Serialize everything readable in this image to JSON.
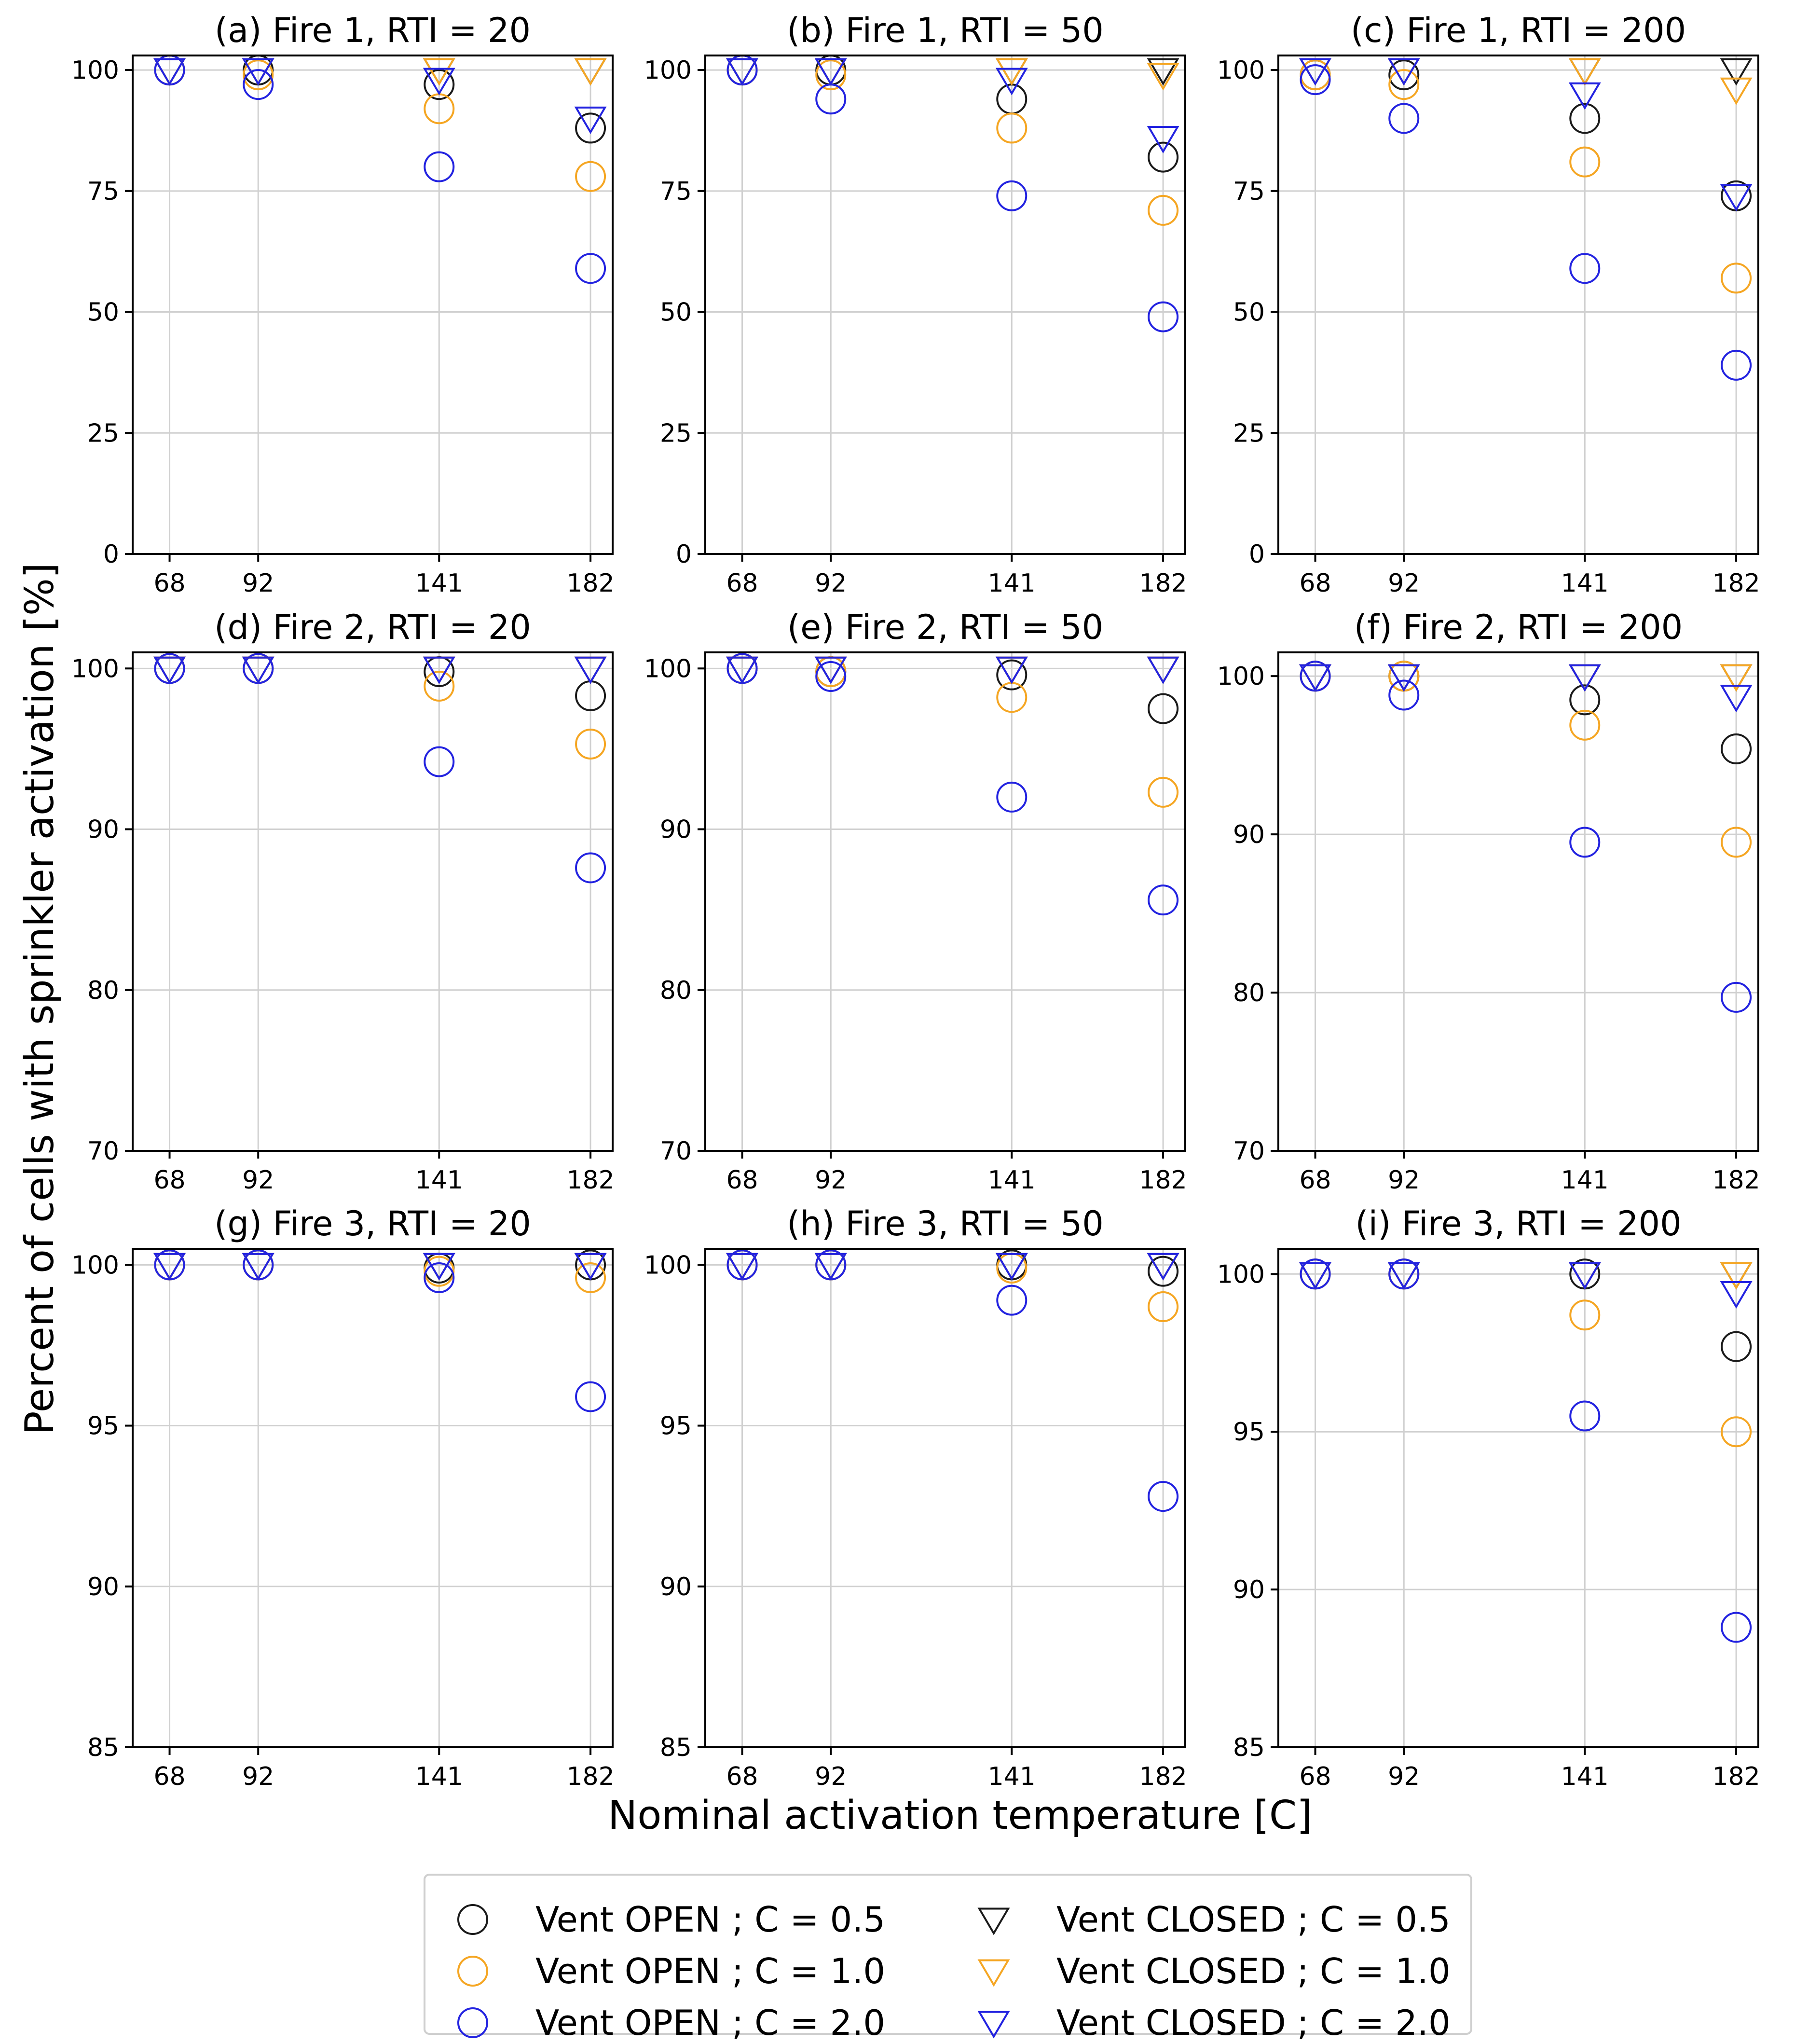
{
  "chart_data": {
    "type": "scatter",
    "xlabel": "Nominal activation temperature [C]",
    "ylabel": "Percent of cells with sprinkler activation [%]",
    "x_ticks": [
      68,
      92,
      141,
      182
    ],
    "grid": true,
    "legend_location": "bottom-center",
    "series_meta": [
      {
        "key": "open_05",
        "name": "Vent OPEN ; C = 0.5",
        "marker": "circle",
        "color": "#1a1a1a"
      },
      {
        "key": "open_10",
        "name": "Vent OPEN ; C = 1.0",
        "marker": "circle",
        "color": "#f5a623"
      },
      {
        "key": "open_20",
        "name": "Vent OPEN ; C = 2.0",
        "marker": "circle",
        "color": "#2323e0"
      },
      {
        "key": "closed_05",
        "name": "Vent CLOSED ; C = 0.5",
        "marker": "triangle-down",
        "color": "#1a1a1a"
      },
      {
        "key": "closed_10",
        "name": "Vent CLOSED ; C = 1.0",
        "marker": "triangle-down",
        "color": "#f5a623"
      },
      {
        "key": "closed_20",
        "name": "Vent CLOSED ; C = 2.0",
        "marker": "triangle-down",
        "color": "#2323e0"
      }
    ],
    "panels": [
      {
        "title": "(a) Fire 1, RTI = 20",
        "ylim": [
          0,
          103
        ],
        "yticks": [
          0,
          25,
          50,
          75,
          100
        ],
        "series": {
          "open_05": [
            100,
            100,
            97,
            88
          ],
          "open_10": [
            100,
            99,
            92,
            78
          ],
          "open_20": [
            100,
            97,
            80,
            59
          ],
          "closed_05": [
            100,
            100,
            100,
            100
          ],
          "closed_10": [
            100,
            100,
            100,
            100
          ],
          "closed_20": [
            100,
            100,
            98,
            90
          ]
        }
      },
      {
        "title": "(b) Fire 1, RTI = 50",
        "ylim": [
          0,
          103
        ],
        "yticks": [
          0,
          25,
          50,
          75,
          100
        ],
        "series": {
          "open_05": [
            100,
            100,
            94,
            82
          ],
          "open_10": [
            100,
            99,
            88,
            71
          ],
          "open_20": [
            100,
            94,
            74,
            49
          ],
          "closed_05": [
            100,
            100,
            100,
            100
          ],
          "closed_10": [
            100,
            100,
            100,
            99
          ],
          "closed_20": [
            100,
            100,
            98,
            86
          ]
        }
      },
      {
        "title": "(c) Fire 1, RTI = 200",
        "ylim": [
          0,
          103
        ],
        "yticks": [
          0,
          25,
          50,
          75,
          100
        ],
        "series": {
          "open_05": [
            99,
            99,
            90,
            74
          ],
          "open_10": [
            99,
            97,
            81,
            57
          ],
          "open_20": [
            98,
            90,
            59,
            39
          ],
          "closed_05": [
            100,
            100,
            100,
            100
          ],
          "closed_10": [
            100,
            100,
            100,
            96
          ],
          "closed_20": [
            100,
            100,
            95,
            74
          ]
        }
      },
      {
        "title": "(d) Fire 2, RTI = 20",
        "ylim": [
          70,
          101
        ],
        "yticks": [
          70,
          80,
          90,
          100
        ],
        "series": {
          "open_05": [
            100,
            100,
            99.8,
            98.3
          ],
          "open_10": [
            100,
            100,
            98.9,
            95.3
          ],
          "open_20": [
            100,
            100,
            94.2,
            87.6
          ],
          "closed_05": [
            100,
            100,
            100,
            100
          ],
          "closed_10": [
            100,
            100,
            100,
            100
          ],
          "closed_20": [
            100,
            100,
            100,
            100
          ]
        }
      },
      {
        "title": "(e) Fire 2, RTI = 50",
        "ylim": [
          70,
          101
        ],
        "yticks": [
          70,
          80,
          90,
          100
        ],
        "series": {
          "open_05": [
            100,
            99.8,
            99.6,
            97.5
          ],
          "open_10": [
            100,
            99.8,
            98.2,
            92.3
          ],
          "open_20": [
            100,
            99.5,
            92.0,
            85.6
          ],
          "closed_05": [
            100,
            100,
            100,
            100
          ],
          "closed_10": [
            100,
            100,
            100,
            100
          ],
          "closed_20": [
            100,
            100,
            100,
            100
          ]
        }
      },
      {
        "title": "(f) Fire 2, RTI = 200",
        "ylim": [
          70,
          101.5
        ],
        "yticks": [
          70,
          80,
          90,
          100
        ],
        "series": {
          "open_05": [
            100,
            100,
            98.5,
            95.4
          ],
          "open_10": [
            100,
            100,
            96.9,
            89.5
          ],
          "open_20": [
            100,
            98.8,
            89.5,
            79.7
          ],
          "closed_05": [
            100,
            100,
            100,
            100
          ],
          "closed_10": [
            100,
            100,
            100,
            100
          ],
          "closed_20": [
            100,
            100,
            100,
            98.7
          ]
        }
      },
      {
        "title": "(g) Fire 3, RTI = 20",
        "ylim": [
          85,
          100.5
        ],
        "yticks": [
          85,
          90,
          95,
          100
        ],
        "series": {
          "open_05": [
            100,
            100,
            99.9,
            100
          ],
          "open_10": [
            100,
            100,
            99.8,
            99.6
          ],
          "open_20": [
            100,
            100,
            99.6,
            95.9
          ],
          "closed_05": [
            100,
            100,
            100,
            100
          ],
          "closed_10": [
            100,
            100,
            100,
            100
          ],
          "closed_20": [
            100,
            100,
            100,
            100
          ]
        }
      },
      {
        "title": "(h) Fire 3, RTI = 50",
        "ylim": [
          85,
          100.5
        ],
        "yticks": [
          85,
          90,
          95,
          100
        ],
        "series": {
          "open_05": [
            100,
            100,
            100,
            99.8
          ],
          "open_10": [
            100,
            100,
            99.9,
            98.7
          ],
          "open_20": [
            100,
            100,
            98.9,
            92.8
          ],
          "closed_05": [
            100,
            100,
            100,
            100
          ],
          "closed_10": [
            100,
            100,
            100,
            100
          ],
          "closed_20": [
            100,
            100,
            100,
            100
          ]
        }
      },
      {
        "title": "(i) Fire 3, RTI = 200",
        "ylim": [
          85,
          100.8
        ],
        "yticks": [
          85,
          90,
          95,
          100
        ],
        "series": {
          "open_05": [
            100,
            100,
            100,
            97.7
          ],
          "open_10": [
            100,
            100,
            98.7,
            95.0
          ],
          "open_20": [
            100,
            100,
            95.5,
            88.8
          ],
          "closed_05": [
            100,
            100,
            100,
            100
          ],
          "closed_10": [
            100,
            100,
            100,
            100
          ],
          "closed_20": [
            100,
            100,
            100,
            99.4
          ]
        }
      }
    ]
  }
}
